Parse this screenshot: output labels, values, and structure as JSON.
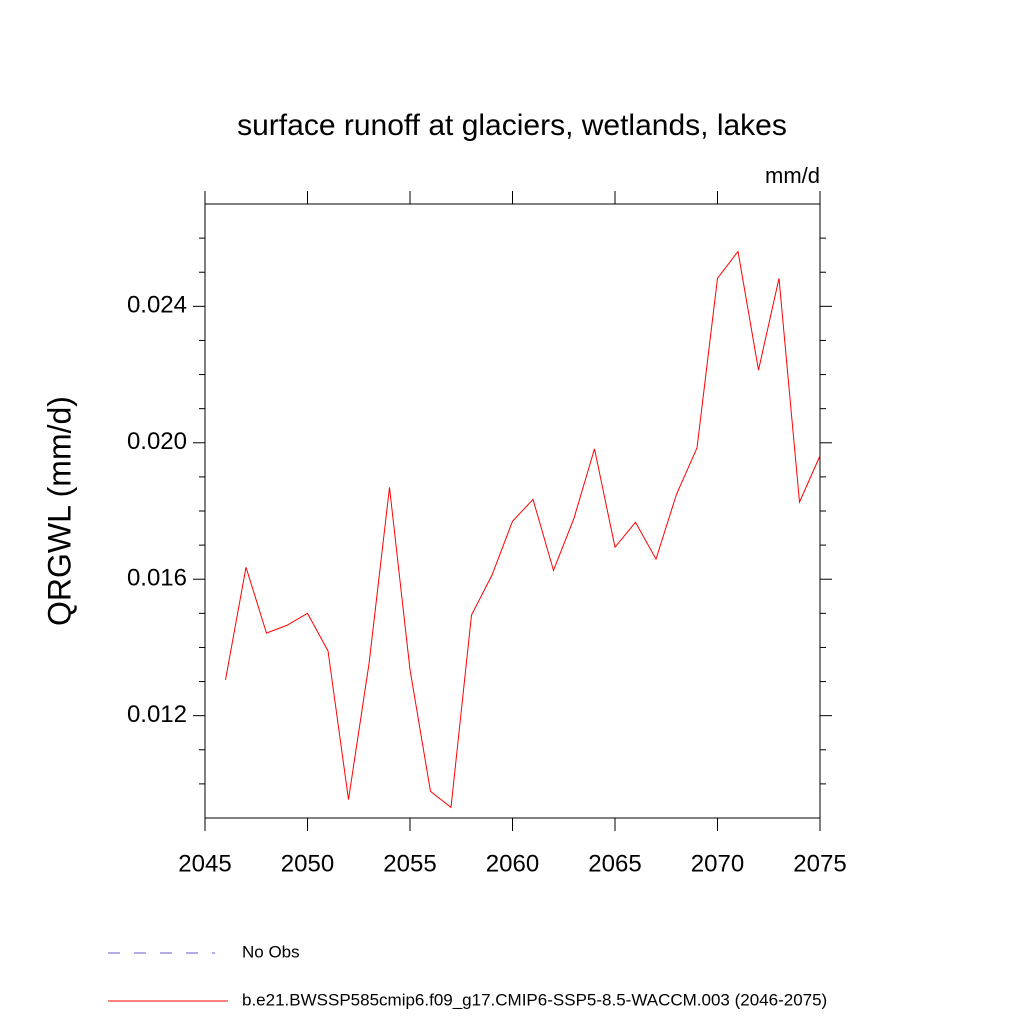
{
  "chart_data": {
    "type": "line",
    "title": "surface runoff at glaciers, wetlands, lakes",
    "units": "mm/d",
    "y_label": "QRGWL  (mm/d)",
    "x": [
      2046,
      2047,
      2048,
      2049,
      2050,
      2051,
      2052,
      2053,
      2054,
      2055,
      2056,
      2057,
      2058,
      2059,
      2060,
      2061,
      2062,
      2063,
      2064,
      2065,
      2066,
      2067,
      2068,
      2069,
      2070,
      2071,
      2072,
      2073,
      2074,
      2075
    ],
    "series": [
      {
        "name": "No Obs",
        "color": "#6a5acd",
        "dashed": true,
        "values": [
          null,
          null,
          null,
          null,
          null,
          null,
          null,
          null,
          null,
          null,
          null,
          null,
          null,
          null,
          null,
          null,
          null,
          null,
          null,
          null,
          null,
          null,
          null,
          null,
          null,
          null,
          null,
          null,
          null,
          null
        ]
      },
      {
        "name": "b.e21.BWSSP585cmip6.f09_g17.CMIP6-SSP5-8.5-WACCM.003 (2046-2075)",
        "color": "#ff0000",
        "dashed": false,
        "values": [
          0.01305,
          0.01635,
          0.01442,
          0.01465,
          0.015,
          0.0139,
          0.00954,
          0.01352,
          0.01869,
          0.01335,
          0.00978,
          0.00931,
          0.01495,
          0.01612,
          0.0177,
          0.01834,
          0.01626,
          0.01779,
          0.01982,
          0.01694,
          0.01767,
          0.01659,
          0.01849,
          0.01985,
          0.02482,
          0.02561,
          0.02213,
          0.02482,
          0.01826,
          0.01962
        ]
      }
    ],
    "xlim": [
      2045,
      2075
    ],
    "xticks": [
      2045,
      2050,
      2055,
      2060,
      2065,
      2070,
      2075
    ],
    "ylim": [
      0.009,
      0.027
    ],
    "yticks": [
      {
        "value": 0.012,
        "label": "0.012"
      },
      {
        "value": 0.016,
        "label": "0.016"
      },
      {
        "value": 0.02,
        "label": "0.020"
      },
      {
        "value": 0.024,
        "label": "0.024"
      }
    ],
    "yminorticks": [
      0.01,
      0.011,
      0.013,
      0.014,
      0.015,
      0.017,
      0.018,
      0.019,
      0.021,
      0.022,
      0.023,
      0.025,
      0.026
    ]
  }
}
